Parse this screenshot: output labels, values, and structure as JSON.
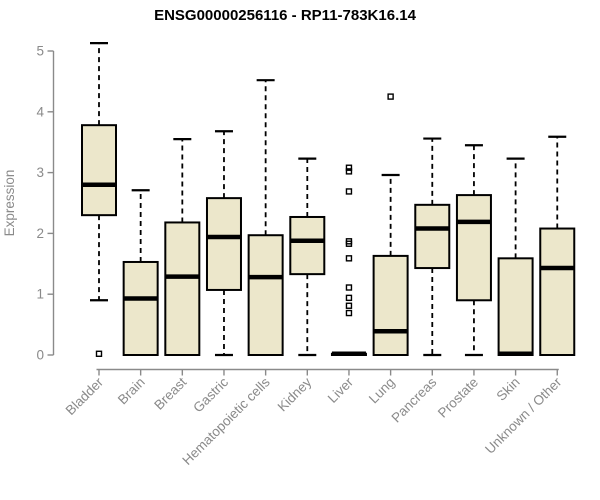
{
  "figure": {
    "title": "ENSG00000256116 - RP11-783K16.14"
  },
  "chart_data": {
    "type": "box",
    "title": "ENSG00000256116 - RP11-783K16.14",
    "xlabel": "",
    "ylabel": "Expression",
    "ylim": [
      0,
      5
    ],
    "yticks": [
      0,
      1,
      2,
      3,
      4,
      5
    ],
    "grid": false,
    "legend": null,
    "categories": [
      "Bladder",
      "Brain",
      "Breast",
      "Gastric",
      "Hematopoietic cells",
      "Kidney",
      "Liver",
      "Lung",
      "Pancreas",
      "Prostate",
      "Skin",
      "Unknown / Other"
    ],
    "series": [
      {
        "name": "Bladder",
        "whisker_low": 0.9,
        "q1": 2.3,
        "median": 2.8,
        "q3": 3.78,
        "whisker_high": 5.13,
        "outliers": [
          0.02
        ]
      },
      {
        "name": "Brain",
        "whisker_low": 0.0,
        "q1": 0.0,
        "median": 0.93,
        "q3": 1.53,
        "whisker_high": 2.71,
        "outliers": []
      },
      {
        "name": "Breast",
        "whisker_low": 0.0,
        "q1": 0.0,
        "median": 1.29,
        "q3": 2.18,
        "whisker_high": 3.55,
        "outliers": []
      },
      {
        "name": "Gastric",
        "whisker_low": 0.0,
        "q1": 1.07,
        "median": 1.94,
        "q3": 2.58,
        "whisker_high": 3.68,
        "outliers": []
      },
      {
        "name": "Hematopoietic cells",
        "whisker_low": 0.0,
        "q1": 0.0,
        "median": 1.28,
        "q3": 1.97,
        "whisker_high": 4.52,
        "outliers": []
      },
      {
        "name": "Kidney",
        "whisker_low": 0.0,
        "q1": 1.33,
        "median": 1.88,
        "q3": 2.27,
        "whisker_high": 3.23,
        "outliers": []
      },
      {
        "name": "Liver",
        "whisker_low": 0.0,
        "q1": 0.0,
        "median": 0.02,
        "q3": 0.02,
        "whisker_high": 0.02,
        "outliers": [
          3.08,
          3.02,
          2.69,
          1.87,
          1.83,
          1.59,
          1.11,
          0.94,
          0.81,
          0.69
        ]
      },
      {
        "name": "Lung",
        "whisker_low": 0.0,
        "q1": 0.0,
        "median": 0.39,
        "q3": 1.63,
        "whisker_high": 2.96,
        "outliers": [
          4.25
        ]
      },
      {
        "name": "Pancreas",
        "whisker_low": 0.0,
        "q1": 1.43,
        "median": 2.08,
        "q3": 2.47,
        "whisker_high": 3.56,
        "outliers": []
      },
      {
        "name": "Prostate",
        "whisker_low": 0.0,
        "q1": 0.9,
        "median": 2.19,
        "q3": 2.63,
        "whisker_high": 3.45,
        "outliers": []
      },
      {
        "name": "Skin",
        "whisker_low": 0.0,
        "q1": 0.0,
        "median": 0.02,
        "q3": 1.59,
        "whisker_high": 3.23,
        "outliers": []
      },
      {
        "name": "Unknown / Other",
        "whisker_low": 0.0,
        "q1": 0.0,
        "median": 1.43,
        "q3": 2.08,
        "whisker_high": 3.59,
        "outliers": []
      }
    ],
    "colors": {
      "box_fill": "#ECE7CB",
      "box_stroke": "#000000",
      "median": "#000000",
      "whisker": "#000000",
      "outlier": "#000000",
      "axis": "#8A8A8A",
      "tick_label": "#8A8A8A",
      "title": "#000000",
      "background": "#FFFFFF"
    }
  }
}
